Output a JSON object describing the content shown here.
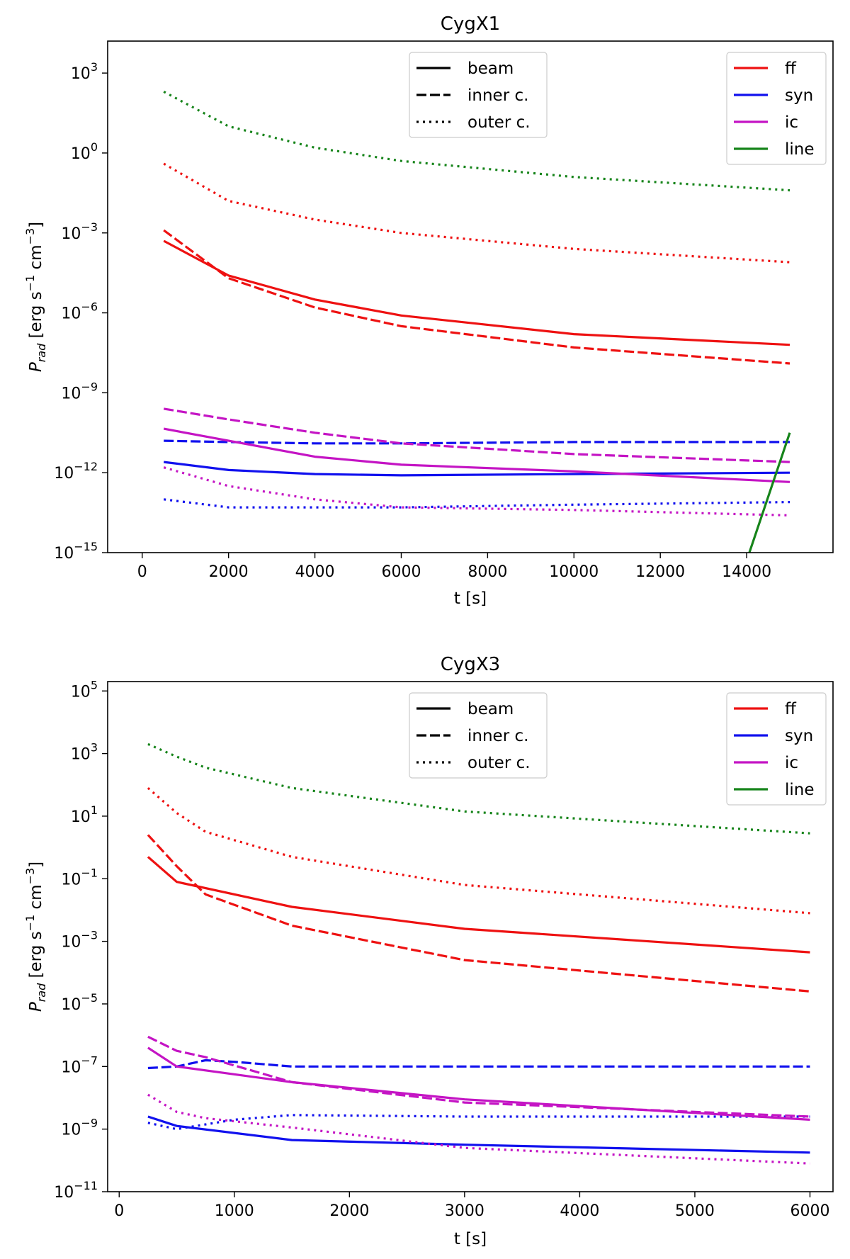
{
  "chart_data": [
    {
      "type": "line",
      "title": "CygX1",
      "xlabel": "t [s]",
      "ylabel": "P_rad [erg s^-1 cm^-3]",
      "yscale": "log",
      "xlim": [
        -800,
        16000
      ],
      "ylim_exp": [
        -15,
        4.2
      ],
      "xticks": [
        0,
        2000,
        4000,
        6000,
        8000,
        10000,
        12000,
        14000
      ],
      "xtick_labels": [
        "0",
        "2000",
        "4000",
        "6000",
        "8000",
        "10000",
        "12000",
        "14000"
      ],
      "yticks_exp": [
        -15,
        -12,
        -9,
        -6,
        -3,
        0,
        3
      ],
      "ytick_labels": [
        "10",
        "10",
        "10",
        "10",
        "10",
        "10",
        "10"
      ],
      "ytick_exponents": [
        "−15",
        "−12",
        "−9",
        "−6",
        "−3",
        "0",
        "3"
      ],
      "legend_styles": {
        "location": "upper center",
        "entries": [
          {
            "label": "beam",
            "dash": "solid"
          },
          {
            "label": "inner c.",
            "dash": "dashed"
          },
          {
            "label": "outer c.",
            "dash": "dotted"
          }
        ]
      },
      "legend_processes": {
        "location": "upper right",
        "entries": [
          {
            "label": "ff",
            "color": "#ee1111"
          },
          {
            "label": "syn",
            "color": "#1111ee"
          },
          {
            "label": "ic",
            "color": "#c414c4"
          },
          {
            "label": "line",
            "color": "#16841a"
          }
        ]
      },
      "series": [
        {
          "name": "ff beam",
          "process": "ff",
          "style": "solid",
          "color": "#ee1111",
          "x": [
            500,
            2000,
            4000,
            6000,
            10000,
            15000
          ],
          "log10_y": [
            -3.3,
            -4.6,
            -5.5,
            -6.1,
            -6.8,
            -7.2
          ]
        },
        {
          "name": "ff inner c.",
          "process": "ff",
          "style": "dashed",
          "color": "#ee1111",
          "x": [
            500,
            2000,
            4000,
            6000,
            10000,
            15000
          ],
          "log10_y": [
            -2.9,
            -4.7,
            -5.8,
            -6.5,
            -7.3,
            -7.9
          ]
        },
        {
          "name": "ff outer c.",
          "process": "ff",
          "style": "dotted",
          "color": "#ee1111",
          "x": [
            500,
            2000,
            4000,
            6000,
            10000,
            15000
          ],
          "log10_y": [
            -0.4,
            -1.8,
            -2.5,
            -3.0,
            -3.6,
            -4.1
          ]
        },
        {
          "name": "syn beam",
          "process": "syn",
          "style": "solid",
          "color": "#1111ee",
          "x": [
            500,
            2000,
            4000,
            6000,
            10000,
            15000
          ],
          "log10_y": [
            -11.6,
            -11.9,
            -12.05,
            -12.1,
            -12.05,
            -12.0
          ]
        },
        {
          "name": "syn inner c.",
          "process": "syn",
          "style": "dashed",
          "color": "#1111ee",
          "x": [
            500,
            2000,
            4000,
            6000,
            10000,
            15000
          ],
          "log10_y": [
            -10.8,
            -10.85,
            -10.9,
            -10.9,
            -10.85,
            -10.85
          ]
        },
        {
          "name": "syn outer c.",
          "process": "syn",
          "style": "dotted",
          "color": "#1111ee",
          "x": [
            500,
            2000,
            4000,
            6000,
            10000,
            15000
          ],
          "log10_y": [
            -13.0,
            -13.3,
            -13.3,
            -13.3,
            -13.2,
            -13.1
          ]
        },
        {
          "name": "ic beam",
          "process": "ic",
          "style": "solid",
          "color": "#c414c4",
          "x": [
            500,
            2000,
            4000,
            6000,
            10000,
            15000
          ],
          "log10_y": [
            -10.35,
            -10.8,
            -11.4,
            -11.7,
            -11.95,
            -12.35
          ]
        },
        {
          "name": "ic inner c.",
          "process": "ic",
          "style": "dashed",
          "color": "#c414c4",
          "x": [
            500,
            2000,
            4000,
            6000,
            10000,
            15000
          ],
          "log10_y": [
            -9.6,
            -10.0,
            -10.5,
            -10.9,
            -11.3,
            -11.6
          ]
        },
        {
          "name": "ic outer c.",
          "process": "ic",
          "style": "dotted",
          "color": "#c414c4",
          "x": [
            500,
            2000,
            4000,
            6000,
            10000,
            15000
          ],
          "log10_y": [
            -11.8,
            -12.5,
            -13.0,
            -13.3,
            -13.4,
            -13.6
          ]
        },
        {
          "name": "line outer c.",
          "process": "line",
          "style": "dotted",
          "color": "#16841a",
          "x": [
            500,
            2000,
            4000,
            6000,
            10000,
            15000
          ],
          "log10_y": [
            2.3,
            1.0,
            0.2,
            -0.3,
            -0.9,
            -1.4
          ]
        },
        {
          "name": "line beam",
          "process": "line",
          "style": "solid",
          "color": "#16841a",
          "x": [
            14000,
            15000
          ],
          "log10_y": [
            -15.3,
            -10.5
          ]
        }
      ]
    },
    {
      "type": "line",
      "title": "CygX3",
      "xlabel": "t [s]",
      "ylabel": "P_rad [erg s^-1 cm^-3]",
      "yscale": "log",
      "xlim": [
        -100,
        6200
      ],
      "ylim_exp": [
        -11,
        5.3
      ],
      "xticks": [
        0,
        1000,
        2000,
        3000,
        4000,
        5000,
        6000
      ],
      "xtick_labels": [
        "0",
        "1000",
        "2000",
        "3000",
        "4000",
        "5000",
        "6000"
      ],
      "yticks_exp": [
        -11,
        -9,
        -7,
        -5,
        -3,
        -1,
        1,
        3,
        5
      ],
      "ytick_labels": [
        "10",
        "10",
        "10",
        "10",
        "10",
        "10",
        "10",
        "10",
        "10"
      ],
      "ytick_exponents": [
        "−11",
        "−9",
        "−7",
        "−5",
        "−3",
        "−1",
        "1",
        "3",
        "5"
      ],
      "legend_styles": {
        "location": "upper center",
        "entries": [
          {
            "label": "beam",
            "dash": "solid"
          },
          {
            "label": "inner c.",
            "dash": "dashed"
          },
          {
            "label": "outer c.",
            "dash": "dotted"
          }
        ]
      },
      "legend_processes": {
        "location": "upper right",
        "entries": [
          {
            "label": "ff",
            "color": "#ee1111"
          },
          {
            "label": "syn",
            "color": "#1111ee"
          },
          {
            "label": "ic",
            "color": "#c414c4"
          },
          {
            "label": "line",
            "color": "#16841a"
          }
        ]
      },
      "series": [
        {
          "name": "ff beam",
          "process": "ff",
          "style": "solid",
          "color": "#ee1111",
          "x": [
            250,
            500,
            1500,
            3000,
            6000
          ],
          "log10_y": [
            -0.3,
            -1.1,
            -1.9,
            -2.6,
            -3.35
          ]
        },
        {
          "name": "ff inner c.",
          "process": "ff",
          "style": "dashed",
          "color": "#ee1111",
          "x": [
            250,
            500,
            750,
            1500,
            3000,
            6000
          ],
          "log10_y": [
            0.4,
            -0.6,
            -1.5,
            -2.5,
            -3.6,
            -4.6
          ]
        },
        {
          "name": "ff outer c.",
          "process": "ff",
          "style": "dotted",
          "color": "#ee1111",
          "x": [
            250,
            500,
            750,
            1500,
            3000,
            6000
          ],
          "log10_y": [
            1.9,
            1.1,
            0.5,
            -0.3,
            -1.2,
            -2.1
          ]
        },
        {
          "name": "syn beam",
          "process": "syn",
          "style": "solid",
          "color": "#1111ee",
          "x": [
            250,
            500,
            1500,
            3000,
            6000
          ],
          "log10_y": [
            -8.6,
            -8.9,
            -9.35,
            -9.5,
            -9.75
          ]
        },
        {
          "name": "syn inner c.",
          "process": "syn",
          "style": "dashed",
          "color": "#1111ee",
          "x": [
            250,
            500,
            750,
            1000,
            1500,
            3000,
            6000
          ],
          "log10_y": [
            -7.05,
            -7.0,
            -6.8,
            -6.85,
            -7.0,
            -7.0,
            -7.0
          ]
        },
        {
          "name": "syn outer c.",
          "process": "syn",
          "style": "dotted",
          "color": "#1111ee",
          "x": [
            250,
            500,
            1000,
            1500,
            3000,
            6000
          ],
          "log10_y": [
            -8.8,
            -9.0,
            -8.7,
            -8.55,
            -8.6,
            -8.6
          ]
        },
        {
          "name": "ic beam",
          "process": "ic",
          "style": "solid",
          "color": "#c414c4",
          "x": [
            250,
            500,
            1500,
            3000,
            6000
          ],
          "log10_y": [
            -6.4,
            -7.0,
            -7.5,
            -8.05,
            -8.7
          ]
        },
        {
          "name": "ic inner c.",
          "process": "ic",
          "style": "dashed",
          "color": "#c414c4",
          "x": [
            250,
            500,
            750,
            1500,
            3000,
            6000
          ],
          "log10_y": [
            -6.05,
            -6.5,
            -6.7,
            -7.5,
            -8.15,
            -8.6
          ]
        },
        {
          "name": "ic outer c.",
          "process": "ic",
          "style": "dotted",
          "color": "#c414c4",
          "x": [
            250,
            500,
            750,
            1500,
            3000,
            6000
          ],
          "log10_y": [
            -7.9,
            -8.45,
            -8.65,
            -8.95,
            -9.6,
            -10.1
          ]
        },
        {
          "name": "line outer c.",
          "process": "line",
          "style": "dotted",
          "color": "#16841a",
          "x": [
            250,
            500,
            750,
            1500,
            3000,
            6000
          ],
          "log10_y": [
            3.3,
            2.9,
            2.55,
            1.9,
            1.15,
            0.45
          ]
        }
      ]
    }
  ]
}
